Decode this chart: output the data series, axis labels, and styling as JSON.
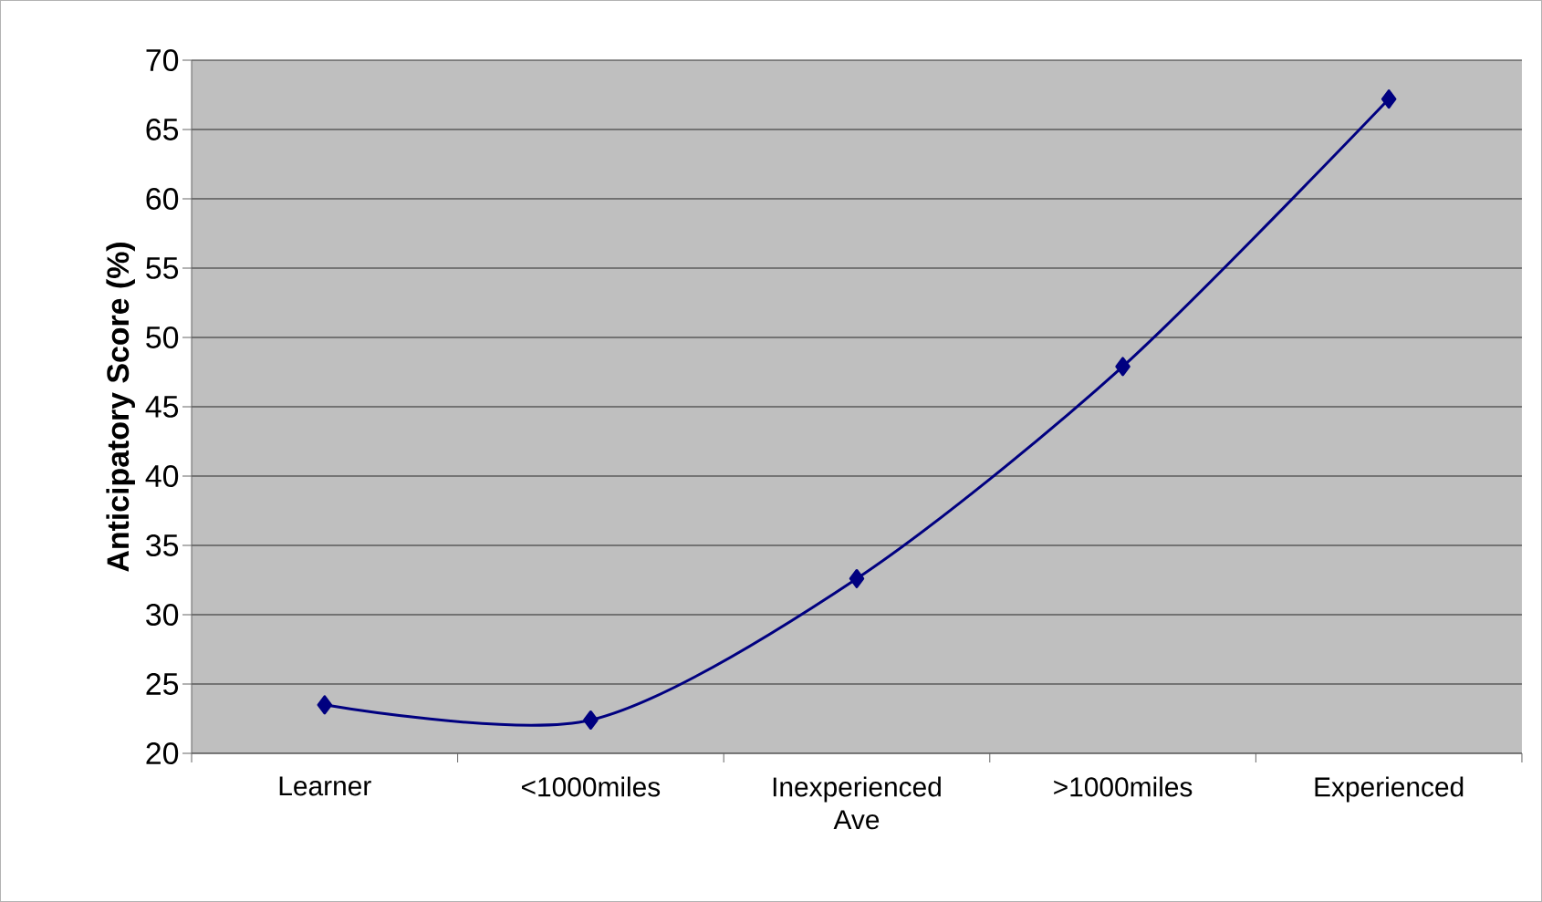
{
  "chart_data": {
    "type": "line",
    "ylabel": "Anticipatory Score (%)",
    "categories": [
      "Learner",
      "<1000miles",
      "Inexperienced Ave",
      ">1000miles",
      "Experienced"
    ],
    "series": [
      {
        "color": "#000080",
        "values": [
          23.5,
          22.4,
          32.6,
          47.9,
          67.2
        ]
      }
    ],
    "ylim": [
      20,
      70
    ],
    "yticks": [
      20,
      25,
      30,
      35,
      40,
      45,
      50,
      55,
      60,
      65,
      70
    ],
    "grid": "y",
    "marker": "diamond",
    "line_style": "solid",
    "legend": false
  }
}
